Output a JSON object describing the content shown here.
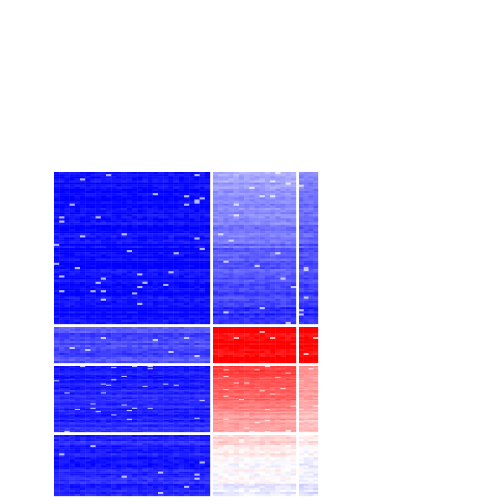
{
  "chart_data": {
    "type": "heatmap",
    "title": "",
    "xlabel": "",
    "ylabel": "",
    "grid": false,
    "legend": "none",
    "color_scale": {
      "low_color": "#0000ff",
      "mid_color": "#ffffff",
      "high_color": "#ff0000",
      "range": [
        -1,
        1
      ]
    },
    "column_groups": [
      {
        "id": "A",
        "columns": 30
      },
      {
        "id": "B",
        "columns": 16
      },
      {
        "id": "C",
        "columns": 4
      }
    ],
    "row_groups": [
      {
        "id": "1",
        "rows": 72
      },
      {
        "id": "2",
        "rows": 18
      },
      {
        "id": "3",
        "rows": 60
      },
      {
        "id": "4",
        "rows": 30
      }
    ],
    "block_levels": [
      {
        "row_group": "1",
        "levels": [
          -0.97,
          -0.35,
          -0.5
        ],
        "trend": [
          0,
          -0.5,
          -0.35
        ]
      },
      {
        "row_group": "2",
        "levels": [
          -0.72,
          0.97,
          0.97
        ],
        "trend": [
          0,
          0,
          0
        ]
      },
      {
        "row_group": "3",
        "levels": [
          -0.88,
          0.85,
          0.5
        ],
        "trend": [
          0,
          -0.55,
          -0.3
        ]
      },
      {
        "row_group": "4",
        "levels": [
          -0.88,
          0.18,
          0.1
        ],
        "trend": [
          0,
          -0.3,
          -0.25
        ]
      }
    ],
    "noise": 0.12
  }
}
